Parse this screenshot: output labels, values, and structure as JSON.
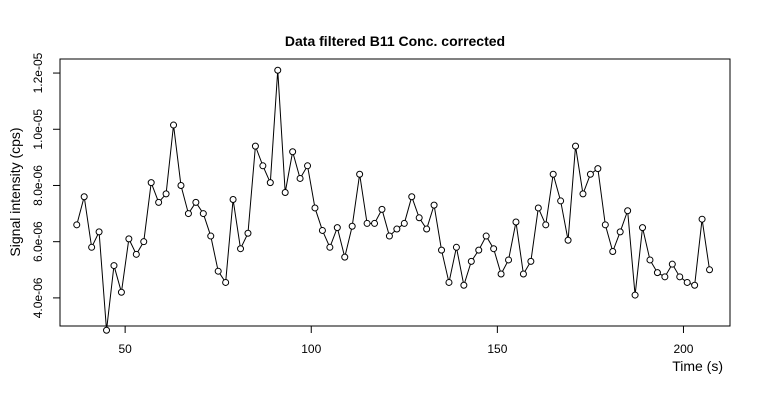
{
  "chart_data": {
    "type": "line",
    "title": "Data filtered B11 Conc. corrected",
    "xlabel": "Time (s)",
    "ylabel": "Signal intensity (cps)",
    "xlim": [
      32.5,
      212.5
    ],
    "ylim": [
      3e-06,
      1.25e-05
    ],
    "x_ticks": [
      50,
      100,
      150,
      200
    ],
    "x_tick_labels": [
      "50",
      "100",
      "150",
      "200"
    ],
    "y_ticks": [
      4e-06,
      6e-06,
      8e-06,
      1e-05,
      1.2e-05
    ],
    "y_tick_labels": [
      "4.0e-06",
      "6.0e-06",
      "8.0e-06",
      "1.0e-05",
      "1.2e-05"
    ],
    "grid": false,
    "legend": "none",
    "line_color": "#000000",
    "series": [
      {
        "x": [
          37,
          39,
          41,
          43,
          45,
          47,
          49,
          51,
          53,
          55,
          57,
          59,
          61,
          63,
          65,
          67,
          69,
          71,
          73,
          75,
          77,
          79,
          81,
          83,
          85,
          87,
          89,
          91,
          93,
          95,
          97,
          99,
          101,
          103,
          105,
          107,
          109,
          111,
          113,
          115,
          117,
          119,
          121,
          123,
          125,
          127,
          129,
          131,
          133,
          135,
          137,
          139,
          141,
          143,
          145,
          147,
          149,
          151,
          153,
          155,
          157,
          159,
          161,
          163,
          165,
          167,
          169,
          171,
          173,
          175,
          177,
          179,
          181,
          183,
          185,
          187,
          189,
          191,
          193,
          195,
          197,
          199,
          201,
          203,
          205,
          207
        ],
        "y": [
          6.6e-06,
          7.6e-06,
          5.8e-06,
          6.35e-06,
          2.85e-06,
          5.15e-06,
          4.2e-06,
          6.1e-06,
          5.55e-06,
          6e-06,
          8.1e-06,
          7.4e-06,
          7.7e-06,
          1.015e-05,
          8e-06,
          7e-06,
          7.4e-06,
          7e-06,
          6.2e-06,
          4.95e-06,
          4.55e-06,
          7.5e-06,
          5.75e-06,
          6.3e-06,
          9.4e-06,
          8.7e-06,
          8.1e-06,
          1.21e-05,
          7.75e-06,
          9.2e-06,
          8.25e-06,
          8.7e-06,
          7.2e-06,
          6.4e-06,
          5.8e-06,
          6.5e-06,
          5.45e-06,
          6.55e-06,
          8.4e-06,
          6.65e-06,
          6.65e-06,
          7.15e-06,
          6.2e-06,
          6.45e-06,
          6.65e-06,
          7.6e-06,
          6.85e-06,
          6.45e-06,
          7.3e-06,
          5.7e-06,
          4.55e-06,
          5.8e-06,
          4.45e-06,
          5.3e-06,
          5.7e-06,
          6.2e-06,
          5.75e-06,
          4.85e-06,
          5.35e-06,
          6.7e-06,
          4.85e-06,
          5.3e-06,
          7.2e-06,
          6.6e-06,
          8.4e-06,
          7.45e-06,
          6.05e-06,
          9.4e-06,
          7.7e-06,
          8.4e-06,
          8.6e-06,
          6.6e-06,
          5.65e-06,
          6.35e-06,
          7.1e-06,
          4.1e-06,
          6.5e-06,
          5.35e-06,
          4.9e-06,
          4.75e-06,
          5.2e-06,
          4.75e-06,
          4.55e-06,
          4.45e-06,
          6.8e-06,
          5e-06
        ]
      }
    ]
  }
}
